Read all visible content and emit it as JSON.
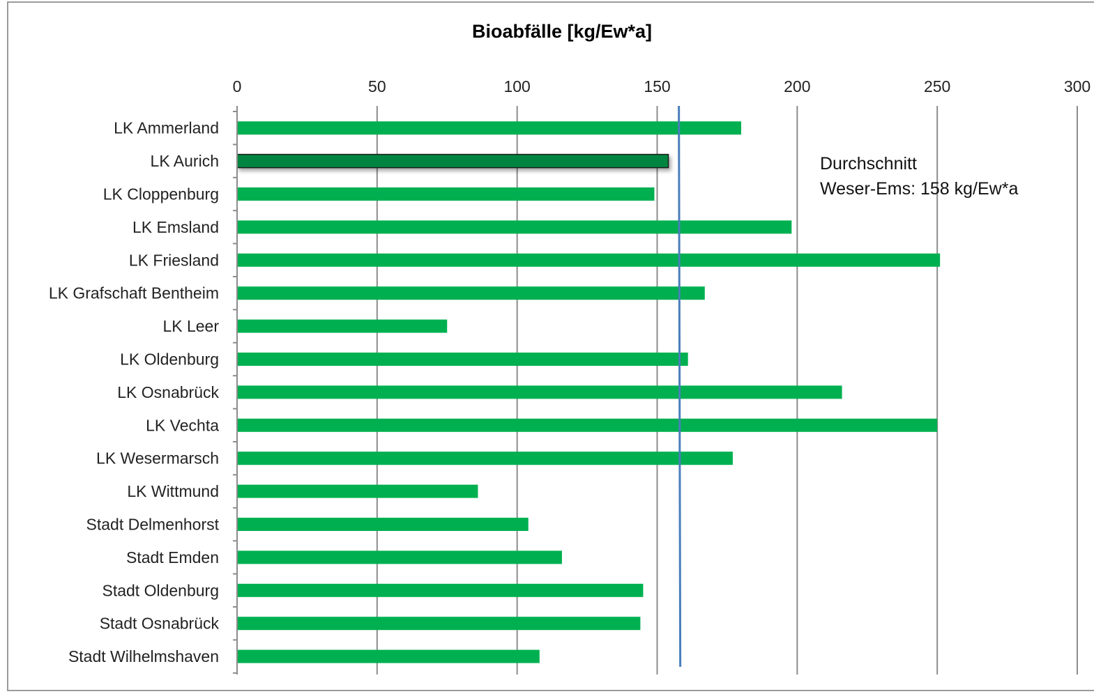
{
  "chart_data": {
    "type": "bar",
    "orientation": "horizontal",
    "title": "Bioabfälle [kg/Ew*a]",
    "xlabel": "",
    "ylabel": "",
    "xlim": [
      0,
      300
    ],
    "x_ticks": [
      "0",
      "50",
      "100",
      "150",
      "200",
      "250",
      "300"
    ],
    "x_axis_position": "top",
    "grid": true,
    "categories": [
      "LK Ammerland",
      "LK Aurich",
      "LK Cloppenburg",
      "LK Emsland",
      "LK Friesland",
      "LK Grafschaft Bentheim",
      "LK Leer",
      "LK Oldenburg",
      "LK Osnabrück",
      "LK Vechta",
      "LK Wesermarsch",
      "LK Wittmund",
      "Stadt Delmenhorst",
      "Stadt Emden",
      "Stadt Oldenburg",
      "Stadt Osnabrück",
      "Stadt Wilhelmshaven"
    ],
    "values": [
      180,
      154,
      149,
      198,
      251,
      167,
      75,
      161,
      216,
      250,
      177,
      86,
      104,
      116,
      145,
      144,
      108
    ],
    "highlight_index": 1,
    "reference_line": {
      "value": 158
    },
    "annotation": {
      "line1": "Durchschnitt",
      "line2": "Weser-Ems: 158 kg/Ew*a"
    },
    "colors": {
      "bar": "#00b050",
      "highlight_bar": "#00853f",
      "highlight_border": "#1a1a1a",
      "reference_line": "#4a7ebb",
      "grid": "#8c8c8c"
    }
  }
}
